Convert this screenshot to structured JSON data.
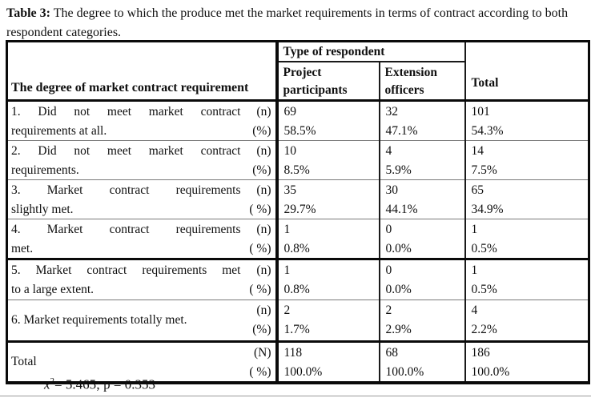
{
  "caption": {
    "label": "Table 3:",
    "text": " The degree to which the produce met the market requirements in terms of contract according to both respondent categories."
  },
  "table": {
    "row_header": "The degree of market contract requirement",
    "group_header": "Type of respondent",
    "col_headers": [
      "Project participants",
      "Extension officers"
    ],
    "total_col_header": "Total",
    "rows": [
      {
        "lines": [
          "1. Did not meet market contract",
          "requirements at all."
        ],
        "units": [
          "(n)",
          "(%)"
        ],
        "values": [
          [
            "69",
            "58.5%"
          ],
          [
            "32",
            "47.1%"
          ],
          [
            "101",
            "54.3%"
          ]
        ]
      },
      {
        "lines": [
          "2. Did not meet market contract",
          "requirements."
        ],
        "units": [
          "(n)",
          "(%)"
        ],
        "values": [
          [
            "10",
            "8.5%"
          ],
          [
            "4",
            "5.9%"
          ],
          [
            "14",
            "7.5%"
          ]
        ]
      },
      {
        "lines": [
          "3. Market contract requirements",
          "slightly met."
        ],
        "units": [
          "(n)",
          "( %)"
        ],
        "values": [
          [
            "35",
            "29.7%"
          ],
          [
            "30",
            "44.1%"
          ],
          [
            "65",
            "34.9%"
          ]
        ]
      },
      {
        "lines": [
          "4. Market contract requirements",
          "met."
        ],
        "units": [
          "(n)",
          "( %)"
        ],
        "values": [
          [
            "1",
            "0.8%"
          ],
          [
            "0",
            "0.0%"
          ],
          [
            "1",
            "0.5%"
          ]
        ]
      },
      {
        "lines": [
          "5. Market contract requirements met",
          "to a large extent."
        ],
        "units": [
          "(n)",
          "( %)"
        ],
        "values": [
          [
            "1",
            "0.8%"
          ],
          [
            "0",
            "0.0%"
          ],
          [
            "1",
            "0.5%"
          ]
        ]
      },
      {
        "lines": [
          "6. Market requirements totally met."
        ],
        "units": [
          "(n)",
          "(%)"
        ],
        "values": [
          [
            "2",
            "1.7%"
          ],
          [
            "2",
            "2.9%"
          ],
          [
            "4",
            "2.2%"
          ]
        ]
      }
    ],
    "total_row": {
      "lines": [
        "Total"
      ],
      "units": [
        "(N)",
        "( %)"
      ],
      "values": [
        [
          "118",
          "100.0%"
        ],
        [
          "68",
          "100.0%"
        ],
        [
          "186",
          "100.0%"
        ]
      ]
    }
  },
  "footnote": {
    "stat_base": "x",
    "stat_sup": "2",
    "stat_rest": "= 5.465; p = 0.353"
  }
}
